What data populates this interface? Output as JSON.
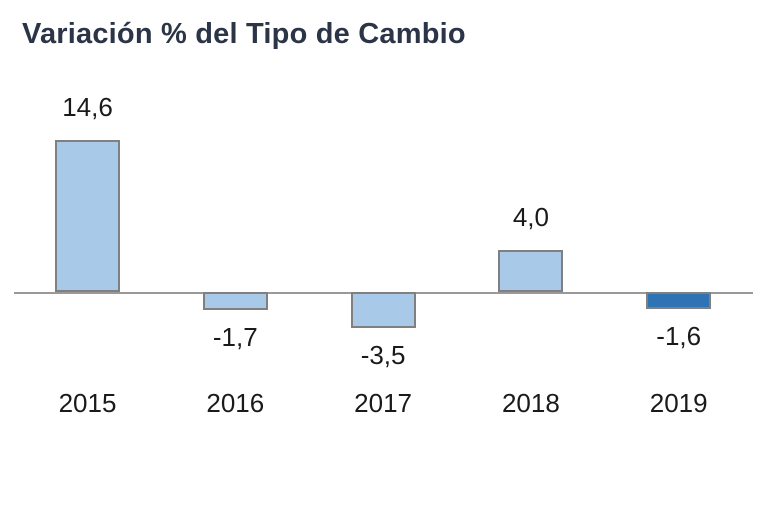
{
  "chart_data": {
    "type": "bar",
    "title": "Variación % del Tipo de Cambio",
    "categories": [
      "2015",
      "2016",
      "2017",
      "2018",
      "2019"
    ],
    "values": [
      14.6,
      -1.7,
      -3.5,
      4.0,
      -1.6
    ],
    "value_labels": [
      "14,6",
      "-1,7",
      "-3,5",
      "4,0",
      "-1,6"
    ],
    "bar_colors": [
      "#a9c9e9",
      "#a9c9e9",
      "#a9c9e9",
      "#a9c9e9",
      "#2e74b5"
    ],
    "highlight_index": 4,
    "xlabel": "",
    "ylabel": "",
    "ylim": [
      -5,
      16
    ],
    "grid": false,
    "legend": "none",
    "colors": {
      "title_text": "#2c3547",
      "bar_fill": "#a9c9e9",
      "bar_fill_highlight": "#2e74b5",
      "bar_border": "#808080",
      "axis_line": "#999999",
      "label_text": "#1a1a1a"
    }
  }
}
